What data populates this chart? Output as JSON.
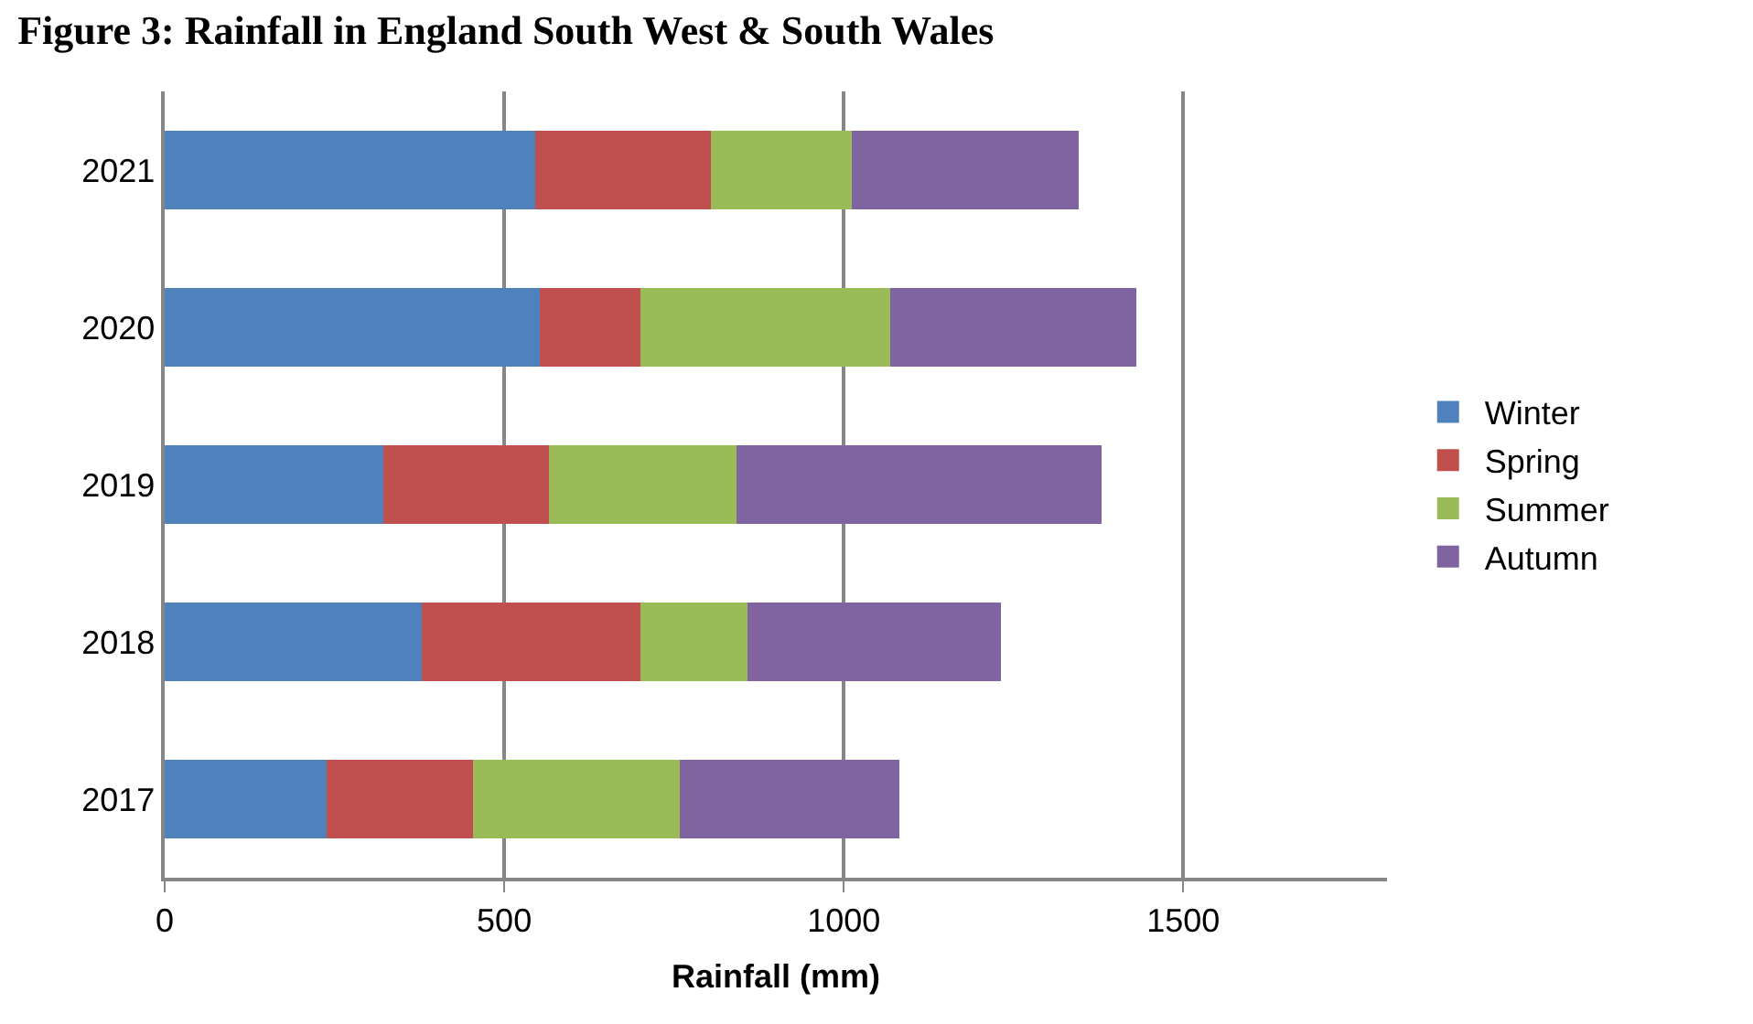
{
  "chart_data": {
    "type": "bar",
    "orientation": "horizontal",
    "stacked": true,
    "title": "Figure 3: Rainfall in England South West & South Wales",
    "xlabel": "Rainfall (mm)",
    "categories": [
      "2021",
      "2020",
      "2019",
      "2018",
      "2017"
    ],
    "series": [
      {
        "name": "Winter",
        "color": "#4f81bd",
        "values": [
          545,
          553,
          322,
          379,
          239
        ]
      },
      {
        "name": "Spring",
        "color": "#c0504d",
        "values": [
          260,
          148,
          244,
          321,
          215
        ]
      },
      {
        "name": "Summer",
        "color": "#9bbb59",
        "values": [
          207,
          368,
          276,
          158,
          304
        ]
      },
      {
        "name": "Autumn",
        "color": "#8064a2",
        "values": [
          334,
          362,
          537,
          374,
          324
        ]
      }
    ],
    "xlim": [
      0,
      1800
    ],
    "xticks": [
      0,
      500,
      1000,
      1500
    ],
    "grid": "x",
    "legend": "right"
  }
}
